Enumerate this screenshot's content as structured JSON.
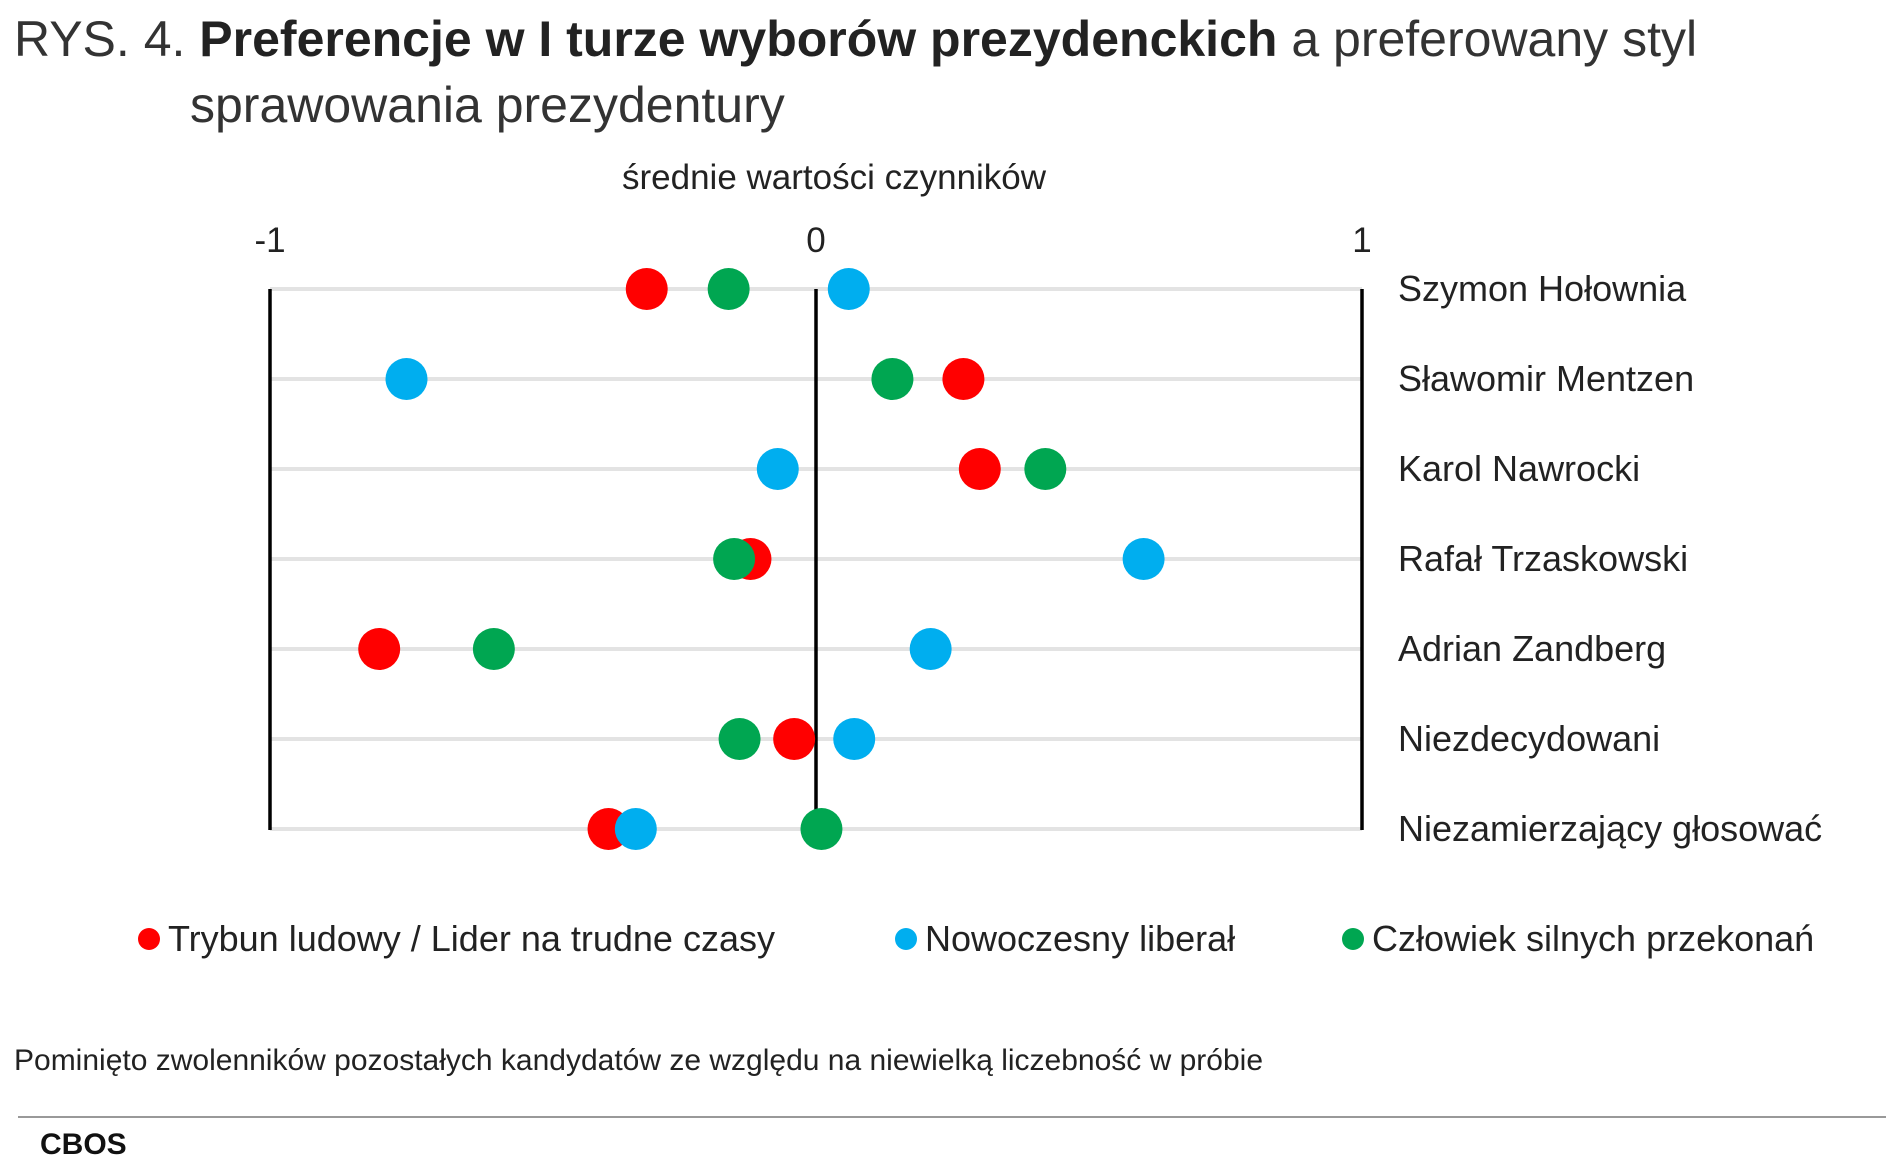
{
  "header": {
    "prefix": "RYS. 4.",
    "bold": "Preferencje w I turze wyborów prezydenckich",
    "rest": "a preferowany styl",
    "line2": "sprawowania prezydentury"
  },
  "note": "Pominięto zwolenników pozostałych kandydatów ze względu na niewielką liczebność w próbie",
  "source": "CBOS",
  "chart_data": {
    "type": "scatter",
    "title": "",
    "subtitle": "średnie wartości czynników",
    "xlim": [
      -1,
      1
    ],
    "x_ticks": [
      -1,
      0,
      1
    ],
    "x_tick_labels": [
      "-1",
      "0",
      "1"
    ],
    "categories": [
      "Szymon Hołownia",
      "Sławomir Mentzen",
      "Karol Nawrocki",
      "Rafał Trzaskowski",
      "Adrian Zandberg",
      "Niezdecydowani",
      "Niezamierzający głosować"
    ],
    "series": [
      {
        "name": "Trybun ludowy / Lider na trudne czasy",
        "color": "#ff0000",
        "values": [
          -0.31,
          0.27,
          0.3,
          -0.12,
          -0.8,
          -0.04,
          -0.38
        ]
      },
      {
        "name": "Nowoczesny liberał",
        "color": "#00aeef",
        "values": [
          0.06,
          -0.75,
          -0.07,
          0.6,
          0.21,
          0.07,
          -0.33
        ]
      },
      {
        "name": "Człowiek silnych przekonań",
        "color": "#00a651",
        "values": [
          -0.16,
          0.14,
          0.42,
          -0.15,
          -0.59,
          -0.14,
          0.01
        ]
      }
    ],
    "grid": true,
    "legend_position": "bottom"
  }
}
